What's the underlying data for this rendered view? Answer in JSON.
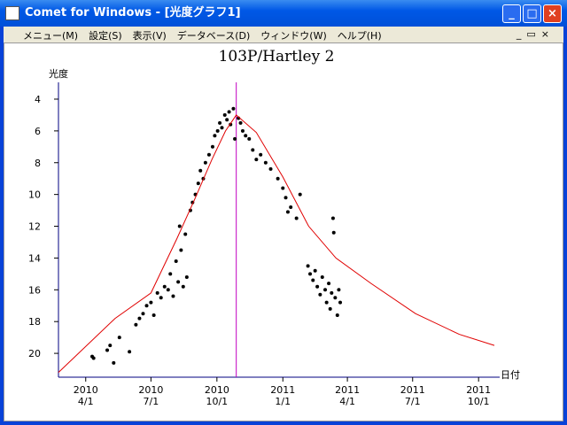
{
  "window": {
    "title": "Comet for Windows - [光度グラフ1]"
  },
  "menu": [
    "メニュー(M)",
    "設定(S)",
    "表示(V)",
    "データベース(D)",
    "ウィンドウ(W)",
    "ヘルプ(H)"
  ],
  "chart_data": {
    "type": "scatter",
    "title": "103P/Hartley 2",
    "y_label": "光度",
    "x_label": "日付",
    "xlim": [
      "2010-02-22",
      "2011-10-23"
    ],
    "xticks": [
      {
        "value": "2010-04-01",
        "label": [
          "2010",
          "4/1"
        ]
      },
      {
        "value": "2010-07-01",
        "label": [
          "2010",
          "7/1"
        ]
      },
      {
        "value": "2010-10-01",
        "label": [
          "2010",
          "10/1"
        ]
      },
      {
        "value": "2011-01-01",
        "label": [
          "2011",
          "1/1"
        ]
      },
      {
        "value": "2011-04-01",
        "label": [
          "2011",
          "4/1"
        ]
      },
      {
        "value": "2011-07-01",
        "label": [
          "2011",
          "7/1"
        ]
      },
      {
        "value": "2011-10-01",
        "label": [
          "2011",
          "10/1"
        ]
      }
    ],
    "ylim": [
      21.5,
      3.5
    ],
    "yticks": [
      4,
      6,
      8,
      10,
      12,
      14,
      16,
      18,
      20
    ],
    "perihelion": "2010-10-28",
    "series": [
      {
        "color": "#000000",
        "x": [
          "2010-04-10",
          "2010-04-12",
          "2010-05-01",
          "2010-05-05",
          "2010-05-10",
          "2010-05-18",
          "2010-06-01",
          "2010-06-10",
          "2010-06-15",
          "2010-06-20",
          "2010-06-25",
          "2010-07-01",
          "2010-07-05",
          "2010-07-10",
          "2010-07-15",
          "2010-07-20",
          "2010-07-25",
          "2010-07-28",
          "2010-08-01",
          "2010-08-05",
          "2010-08-08",
          "2010-08-10",
          "2010-08-12",
          "2010-08-15",
          "2010-08-18",
          "2010-08-20",
          "2010-08-25",
          "2010-08-28",
          "2010-09-01",
          "2010-09-05",
          "2010-09-08",
          "2010-09-12",
          "2010-09-15",
          "2010-09-20",
          "2010-09-25",
          "2010-09-28",
          "2010-10-02",
          "2010-10-05",
          "2010-10-08",
          "2010-10-12",
          "2010-10-15",
          "2010-10-18",
          "2010-10-20",
          "2010-10-24",
          "2010-10-26",
          "2010-10-31",
          "2010-11-03",
          "2010-11-06",
          "2010-11-10",
          "2010-11-15",
          "2010-11-20",
          "2010-11-25",
          "2010-12-01",
          "2010-12-08",
          "2010-12-15",
          "2010-12-25",
          "2011-01-01",
          "2011-01-05",
          "2011-01-08",
          "2011-01-12",
          "2011-01-20",
          "2011-01-25",
          "2011-02-05",
          "2011-02-08",
          "2011-02-12",
          "2011-02-15",
          "2011-02-18",
          "2011-02-22",
          "2011-02-25",
          "2011-03-01",
          "2011-03-03",
          "2011-03-06",
          "2011-03-08",
          "2011-03-10",
          "2011-03-12",
          "2011-03-13",
          "2011-03-15",
          "2011-03-18",
          "2011-03-20",
          "2011-03-22"
        ],
        "values": [
          20.2,
          20.3,
          19.8,
          19.5,
          20.6,
          19.0,
          19.9,
          18.2,
          17.8,
          17.5,
          17.0,
          16.8,
          17.6,
          16.2,
          16.5,
          15.8,
          16.0,
          15.0,
          16.4,
          14.2,
          15.5,
          12.0,
          13.5,
          15.8,
          12.5,
          15.2,
          11.0,
          10.5,
          10.0,
          9.3,
          8.5,
          9.0,
          8.0,
          7.5,
          7.0,
          6.3,
          6.0,
          5.5,
          5.8,
          5.0,
          5.3,
          4.8,
          5.6,
          4.6,
          6.5,
          5.2,
          5.5,
          6.0,
          6.3,
          6.5,
          7.2,
          7.8,
          7.5,
          8.0,
          8.4,
          9.0,
          9.6,
          10.2,
          11.1,
          10.8,
          11.5,
          10.0,
          14.5,
          15.0,
          15.4,
          14.8,
          15.8,
          16.3,
          15.2,
          16.0,
          16.8,
          15.6,
          17.2,
          16.2,
          11.5,
          12.4,
          16.5,
          17.6,
          16.0,
          16.8
        ]
      },
      {
        "type": "line",
        "color": "#e00000",
        "x": [
          "2010-02-22",
          "2010-05-12",
          "2010-07-01",
          "2010-08-06",
          "2010-08-31",
          "2010-09-24",
          "2010-10-13",
          "2010-10-28",
          "2010-11-25",
          "2011-01-01",
          "2011-02-06",
          "2011-03-16",
          "2011-05-04",
          "2011-07-05",
          "2011-09-04",
          "2011-10-23"
        ],
        "values": [
          21.2,
          17.8,
          16.2,
          12.8,
          10.3,
          7.8,
          6.0,
          5.0,
          6.1,
          8.9,
          12.0,
          14.0,
          15.6,
          17.5,
          18.8,
          19.5
        ]
      }
    ]
  }
}
